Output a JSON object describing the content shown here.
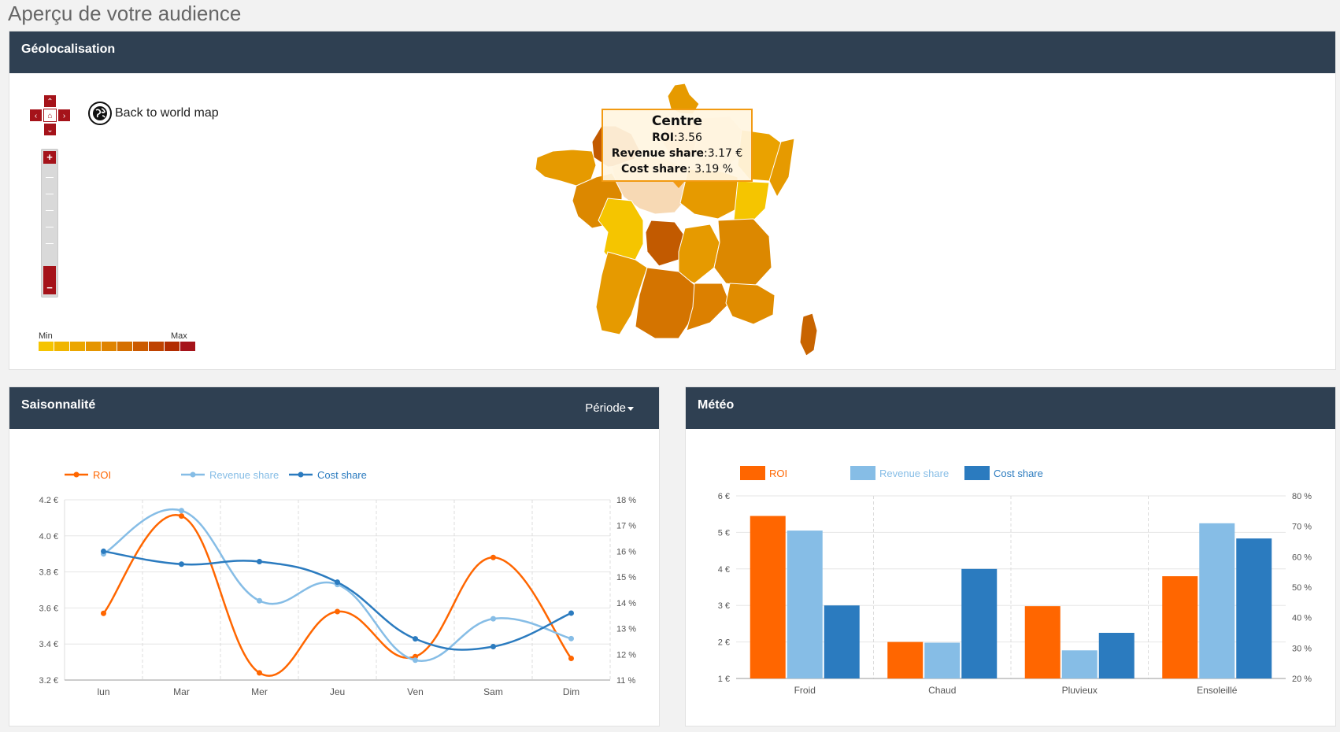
{
  "page": {
    "title": "Aperçu de votre audience"
  },
  "geo": {
    "title": "Géolocalisation",
    "back_link": "Back to world map",
    "legend": {
      "min": "Min",
      "max": "Max",
      "colors": [
        "#f5c400",
        "#f0b500",
        "#eba600",
        "#e59500",
        "#df8400",
        "#d57000",
        "#cb5a00",
        "#bf4200",
        "#b22c00",
        "#a5131a"
      ]
    },
    "zoom": {
      "plus": "+",
      "minus": "−"
    },
    "tooltip": {
      "region": "Centre",
      "roi_label": "ROI",
      "roi_value": "3.56",
      "revenue_label": "Revenue share",
      "revenue_value": "3.17 €",
      "cost_label": "Cost share",
      "cost_value": " 3.19 %"
    },
    "map_colors": {
      "light": "#f7d9b4",
      "yellow": "#f5c500",
      "orange": "#e59a00",
      "orange_mid": "#dc8800",
      "dark": "#c86400",
      "brown": "#c25a00"
    }
  },
  "season": {
    "title": "Saisonnalité",
    "menu": "Période",
    "chart_data": {
      "type": "line",
      "categories": [
        "lun",
        "Mar",
        "Mer",
        "Jeu",
        "Ven",
        "Sam",
        "Dim"
      ],
      "y_left": {
        "ticks": [
          "3.2 €",
          "3.4 €",
          "3.6 €",
          "3.8 €",
          "4.0 €",
          "4.2 €"
        ],
        "range": [
          3.2,
          4.2
        ]
      },
      "y_right": {
        "ticks": [
          "11 %",
          "12 %",
          "13 %",
          "14 %",
          "15 %",
          "16 %",
          "17 %",
          "18 %"
        ],
        "range": [
          11,
          18
        ]
      },
      "grid": true,
      "legend_position": "top-left",
      "series": [
        {
          "name": "ROI",
          "color": "#ff6600",
          "axis": "left",
          "values": [
            3.57,
            4.11,
            3.24,
            3.58,
            3.33,
            3.88,
            3.32
          ]
        },
        {
          "name": "Revenue share",
          "color": "#86bde6",
          "axis": "left",
          "values": [
            3.9,
            4.14,
            3.64,
            3.73,
            3.31,
            3.54,
            3.43
          ]
        },
        {
          "name": "Cost share",
          "color": "#2b7bbf",
          "axis": "right",
          "values": [
            16.0,
            15.5,
            15.6,
            14.8,
            12.6,
            12.3,
            13.6
          ]
        }
      ]
    }
  },
  "meteo": {
    "title": "Météo",
    "chart_data": {
      "type": "bar",
      "categories": [
        "Froid",
        "Chaud",
        "Pluvieux",
        "Ensoleillé"
      ],
      "y_left": {
        "ticks": [
          "1 €",
          "2 €",
          "3 €",
          "4 €",
          "5 €",
          "6 €"
        ],
        "range": [
          1,
          6
        ]
      },
      "y_right": {
        "ticks": [
          "20 %",
          "30 %",
          "40 %",
          "50 %",
          "60 %",
          "70 %",
          "80 %"
        ],
        "range": [
          20,
          80
        ]
      },
      "grid": true,
      "legend_position": "top-left",
      "series": [
        {
          "name": "ROI",
          "color": "#ff6600",
          "axis": "left",
          "values": [
            5.45,
            2.0,
            2.98,
            3.8
          ]
        },
        {
          "name": "Revenue share",
          "color": "#86bde6",
          "axis": "left",
          "values": [
            5.05,
            1.98,
            1.77,
            5.25
          ]
        },
        {
          "name": "Cost share",
          "color": "#2b7bbf",
          "axis": "right",
          "values": [
            44,
            56,
            35,
            66
          ]
        }
      ]
    }
  }
}
